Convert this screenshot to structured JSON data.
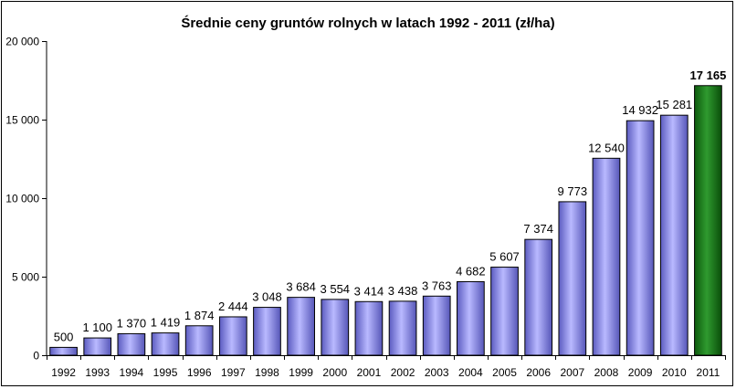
{
  "chart_data": {
    "type": "bar",
    "title": "Średnie ceny gruntów rolnych w latach 1992 - 2011 (zł/ha)",
    "xlabel": "",
    "ylabel": "",
    "ylim": [
      0,
      20000
    ],
    "yticks": [
      0,
      5000,
      10000,
      15000,
      20000
    ],
    "ytick_labels": [
      "0",
      "5 000",
      "10 000",
      "15 000",
      "20 000"
    ],
    "grid": false,
    "legend": "none",
    "categories": [
      "1992",
      "1993",
      "1994",
      "1995",
      "1996",
      "1997",
      "1998",
      "1999",
      "2000",
      "2001",
      "2002",
      "2003",
      "2004",
      "2005",
      "2006",
      "2007",
      "2008",
      "2009",
      "2010",
      "2011"
    ],
    "values": [
      500,
      1100,
      1370,
      1419,
      1874,
      2444,
      3048,
      3684,
      3554,
      3414,
      3438,
      3763,
      4682,
      5607,
      7374,
      9773,
      12540,
      14932,
      15281,
      17165
    ],
    "value_labels": [
      "500",
      "1 100",
      "1 370",
      "1 419",
      "1 874",
      "2 444",
      "3 048",
      "3 684",
      "3 554",
      "3 414",
      "3 438",
      "3 763",
      "4 682",
      "5 607",
      "7 374",
      "9 773",
      "12 540",
      "14 932",
      "15 281",
      "17 165"
    ],
    "bar_color": "#8f8fe6",
    "highlight_color": "#1e7a1e",
    "highlight_index": 19
  }
}
